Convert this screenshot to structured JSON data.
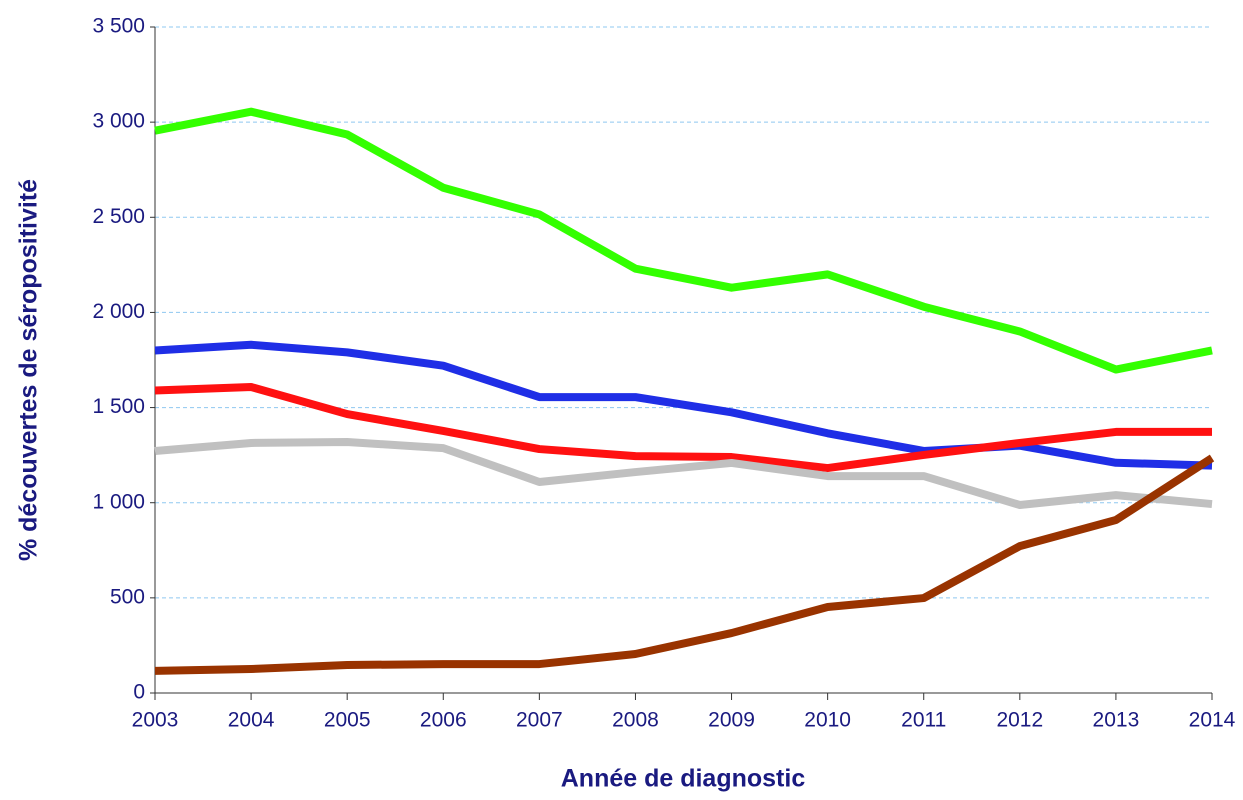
{
  "chart_data": {
    "type": "line",
    "x_label": "Année de diagnostic",
    "y_label": "% découvertes de séropositivité",
    "x": [
      2003,
      2004,
      2005,
      2006,
      2007,
      2008,
      2009,
      2010,
      2011,
      2012,
      2013,
      2014
    ],
    "xlim": [
      2003,
      2014
    ],
    "xticks": [
      2003,
      2004,
      2005,
      2006,
      2007,
      2008,
      2009,
      2010,
      2011,
      2012,
      2013,
      2014
    ],
    "ylim": [
      0,
      3500
    ],
    "yticks": [
      0,
      500,
      {
        "value": 1000,
        "label": "1 000"
      },
      {
        "value": 1500,
        "label": "1 500"
      },
      {
        "value": 2000,
        "label": "2 000"
      },
      {
        "value": 2500,
        "label": "2 500"
      },
      {
        "value": 3000,
        "label": "3 000"
      },
      {
        "value": 3500,
        "label": "3 500"
      }
    ],
    "grid": true,
    "series": [
      {
        "color": "#33ff00",
        "values": [
          2955,
          3055,
          2935,
          2655,
          2515,
          2230,
          2130,
          2200,
          2030,
          1900,
          1700,
          1800
        ]
      },
      {
        "color": "#1f2ee6",
        "values": [
          1800,
          1830,
          1790,
          1720,
          1555,
          1555,
          1475,
          1365,
          1272,
          1300,
          1210,
          1195
        ]
      },
      {
        "color": "#ff1111",
        "values": [
          1590,
          1608,
          1466,
          1377,
          1282,
          1245,
          1240,
          1182,
          1251,
          1314,
          1372,
          1372
        ]
      },
      {
        "color": "#c0c0c0",
        "values": [
          1272,
          1314,
          1319,
          1287,
          1109,
          1161,
          1209,
          1140,
          1140,
          988,
          1040,
          993
        ]
      },
      {
        "color": "#993300",
        "values": [
          116,
          126,
          147,
          152,
          152,
          205,
          315,
          452,
          499,
          772,
          909,
          1235
        ]
      }
    ]
  }
}
